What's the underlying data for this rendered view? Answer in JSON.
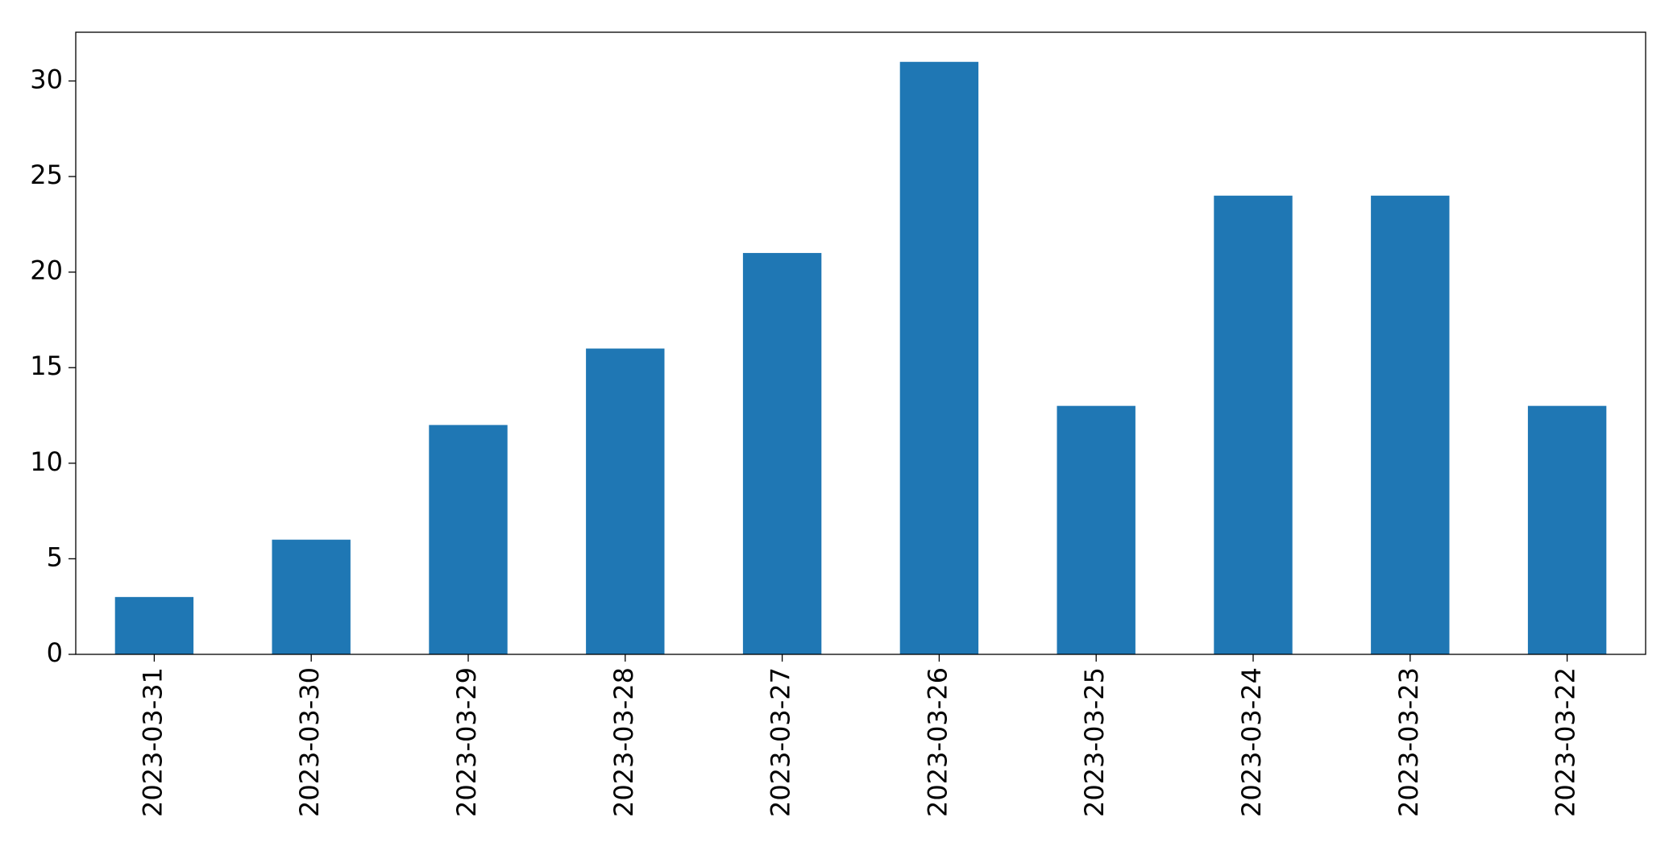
{
  "chart_data": {
    "type": "bar",
    "categories": [
      "2023-03-31",
      "2023-03-30",
      "2023-03-29",
      "2023-03-28",
      "2023-03-27",
      "2023-03-26",
      "2023-03-25",
      "2023-03-24",
      "2023-03-23",
      "2023-03-22"
    ],
    "values": [
      3,
      6,
      12,
      16,
      21,
      31,
      13,
      24,
      24,
      13
    ],
    "color": "#1f77b4",
    "ylim": [
      0,
      32.55
    ],
    "yticks": [
      0,
      5,
      10,
      15,
      20,
      25,
      30
    ],
    "grid": false
  }
}
